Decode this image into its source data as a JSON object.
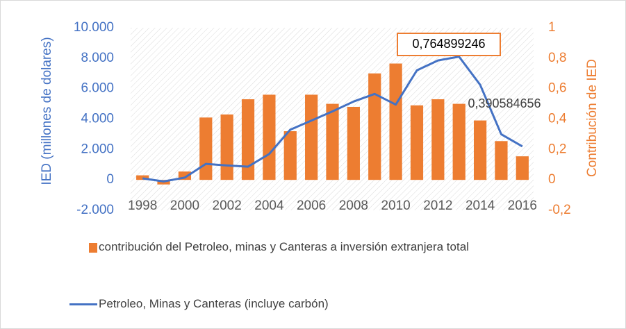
{
  "chart_data": {
    "type": "bar-line",
    "categories": [
      "1998",
      null,
      "2000",
      null,
      "2002",
      null,
      "2004",
      null,
      "2006",
      null,
      "2008",
      null,
      "2010",
      null,
      "2012",
      null,
      "2014",
      null,
      "2016"
    ],
    "y_label": "IED (millones de dolares)",
    "y2_label": "Contribución de IED",
    "ylim": [
      -2000,
      10000
    ],
    "yticks": [
      {
        "value": -2000,
        "label": "-2.000"
      },
      0,
      {
        "value": 2000,
        "label": "2.000"
      },
      {
        "value": 4000,
        "label": "4.000"
      },
      {
        "value": 6000,
        "label": "6.000"
      },
      {
        "value": 8000,
        "label": "8.000"
      },
      {
        "value": 10000,
        "label": "10.000"
      }
    ],
    "y2lim": [
      -0.2,
      1
    ],
    "y2ticks": [
      {
        "value": -0.2,
        "label": "-0,2"
      },
      0,
      {
        "value": 0.2,
        "label": "0,2"
      },
      {
        "value": 0.4,
        "label": "0,4"
      },
      {
        "value": 0.6,
        "label": "0,6"
      },
      {
        "value": 0.8,
        "label": "0,8"
      },
      1
    ],
    "series": [
      {
        "name": "contribución del Petroleo, minas y Canteras a inversión extranjera total",
        "type": "bar",
        "axis": "y2",
        "color": "#ed7d31",
        "values": [
          0.03,
          -0.03,
          0.055,
          0.41,
          0.43,
          0.53,
          0.56,
          0.32,
          0.56,
          0.5,
          0.48,
          0.7,
          0.764899246,
          0.49,
          0.53,
          0.5,
          0.390584656,
          0.255,
          0.155
        ],
        "value_labels": [
          null,
          null,
          null,
          null,
          null,
          null,
          null,
          null,
          null,
          null,
          null,
          null,
          "0,764899246",
          null,
          null,
          null,
          "0,390584656",
          null,
          null
        ]
      },
      {
        "name": "Petroleo, Minas y Canteras (incluye carbón)",
        "type": "line",
        "axis": "y",
        "color": "#4472c4",
        "values": [
          100,
          -100,
          150,
          1050,
          950,
          870,
          1700,
          3300,
          3900,
          4500,
          5150,
          5650,
          4950,
          7200,
          7850,
          8100,
          6250,
          3000,
          2200
        ]
      }
    ]
  }
}
